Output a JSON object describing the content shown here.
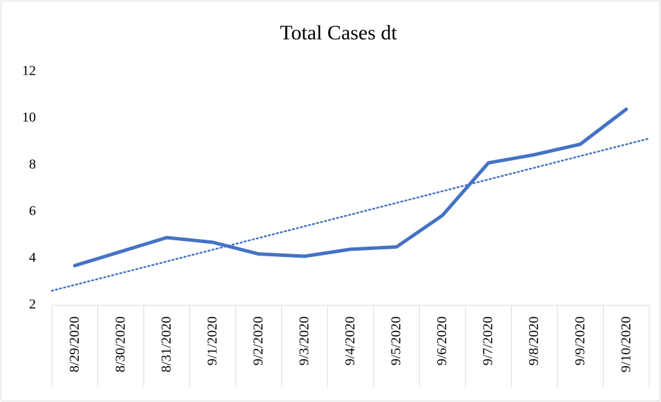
{
  "chart_data": {
    "type": "line",
    "title": "Total Cases dt",
    "categories": [
      "8/29/2020",
      "8/30/2020",
      "8/31/2020",
      "9/1/2020",
      "9/2/2020",
      "9/3/2020",
      "9/4/2020",
      "9/5/2020",
      "9/6/2020",
      "9/7/2020",
      "9/8/2020",
      "9/9/2020",
      "9/10/2020"
    ],
    "series": [
      {
        "name": "Total Cases dt",
        "color": "#4472c4",
        "values": [
          3.7,
          4.3,
          4.9,
          4.7,
          4.2,
          4.1,
          4.4,
          4.5,
          5.85,
          8.1,
          8.45,
          8.9,
          10.4
        ]
      }
    ],
    "trendline": "linear",
    "ylim": [
      2,
      12
    ],
    "yticks": [
      2,
      4,
      6,
      8,
      10,
      12
    ],
    "grid": false
  }
}
